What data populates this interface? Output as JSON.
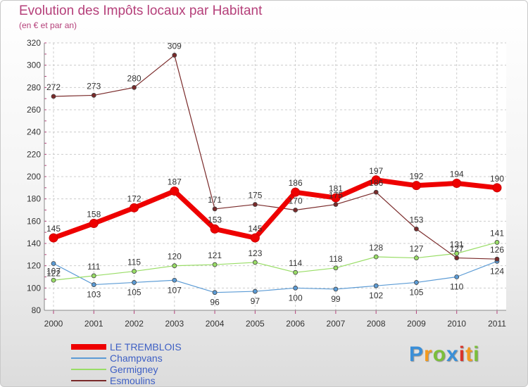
{
  "header": {
    "title": "Evolution des Impôts locaux par Habitant",
    "subtitle": "(en € et par an)"
  },
  "logo": {
    "letters": [
      {
        "char": "P",
        "color": "#3a8fd8"
      },
      {
        "char": "r",
        "color": "#f39a1e"
      },
      {
        "char": "o",
        "color": "#7bbf3a"
      },
      {
        "char": "x",
        "color": "#3a8fd8"
      },
      {
        "char": "i",
        "color": "#d9342b"
      },
      {
        "char": "t",
        "color": "#f39a1e"
      },
      {
        "char": "i",
        "color": "#7bbf3a"
      }
    ]
  },
  "chart_data": {
    "type": "line",
    "title": "Evolution des Impôts locaux par Habitant",
    "subtitle": "(en € et par an)",
    "xlabel": "",
    "ylabel": "",
    "categories": [
      "2000",
      "2001",
      "2002",
      "2003",
      "2004",
      "2005",
      "2006",
      "2007",
      "2008",
      "2009",
      "2010",
      "2011"
    ],
    "ylim": [
      80,
      320
    ],
    "yticks": [
      80,
      100,
      120,
      140,
      160,
      180,
      200,
      220,
      240,
      260,
      280,
      300,
      320
    ],
    "grid": true,
    "legend_position": "bottom-left",
    "series": [
      {
        "name": "LE TREMBLOIS",
        "color": "#ee0000",
        "width": 7,
        "marker": 6,
        "values": [
          145,
          158,
          172,
          187,
          153,
          145,
          186,
          181,
          197,
          192,
          194,
          190
        ],
        "labels": [
          "145",
          "158",
          "172",
          "187",
          "153",
          "145",
          "186",
          "181",
          "197",
          "192",
          "194",
          "190"
        ]
      },
      {
        "name": "Champvans",
        "color": "#5b9bd5",
        "width": 1.2,
        "marker": 3,
        "values": [
          122,
          103,
          105,
          107,
          96,
          97,
          100,
          99,
          102,
          105,
          110,
          124
        ],
        "labels": [
          "122",
          "103",
          "105",
          "107",
          "96",
          "97",
          "100",
          "99",
          "102",
          "105",
          "110",
          "124"
        ]
      },
      {
        "name": "Germigney",
        "color": "#99dd66",
        "width": 1.2,
        "marker": 3,
        "values": [
          107,
          111,
          115,
          120,
          121,
          123,
          114,
          118,
          128,
          127,
          131,
          141
        ],
        "labels": [
          "107",
          "111",
          "115",
          "120",
          "121",
          "123",
          "114",
          "118",
          "128",
          "127",
          "131",
          "141"
        ]
      },
      {
        "name": "Esmoulins",
        "color": "#7a2a2a",
        "width": 1.2,
        "marker": 3,
        "values": [
          272,
          273,
          280,
          309,
          171,
          175,
          170,
          175,
          186,
          153,
          127,
          126
        ],
        "labels": [
          "272",
          "273",
          "280",
          "309",
          "171",
          "175",
          "170",
          "175",
          "186",
          "153",
          "127",
          "126"
        ]
      }
    ]
  }
}
